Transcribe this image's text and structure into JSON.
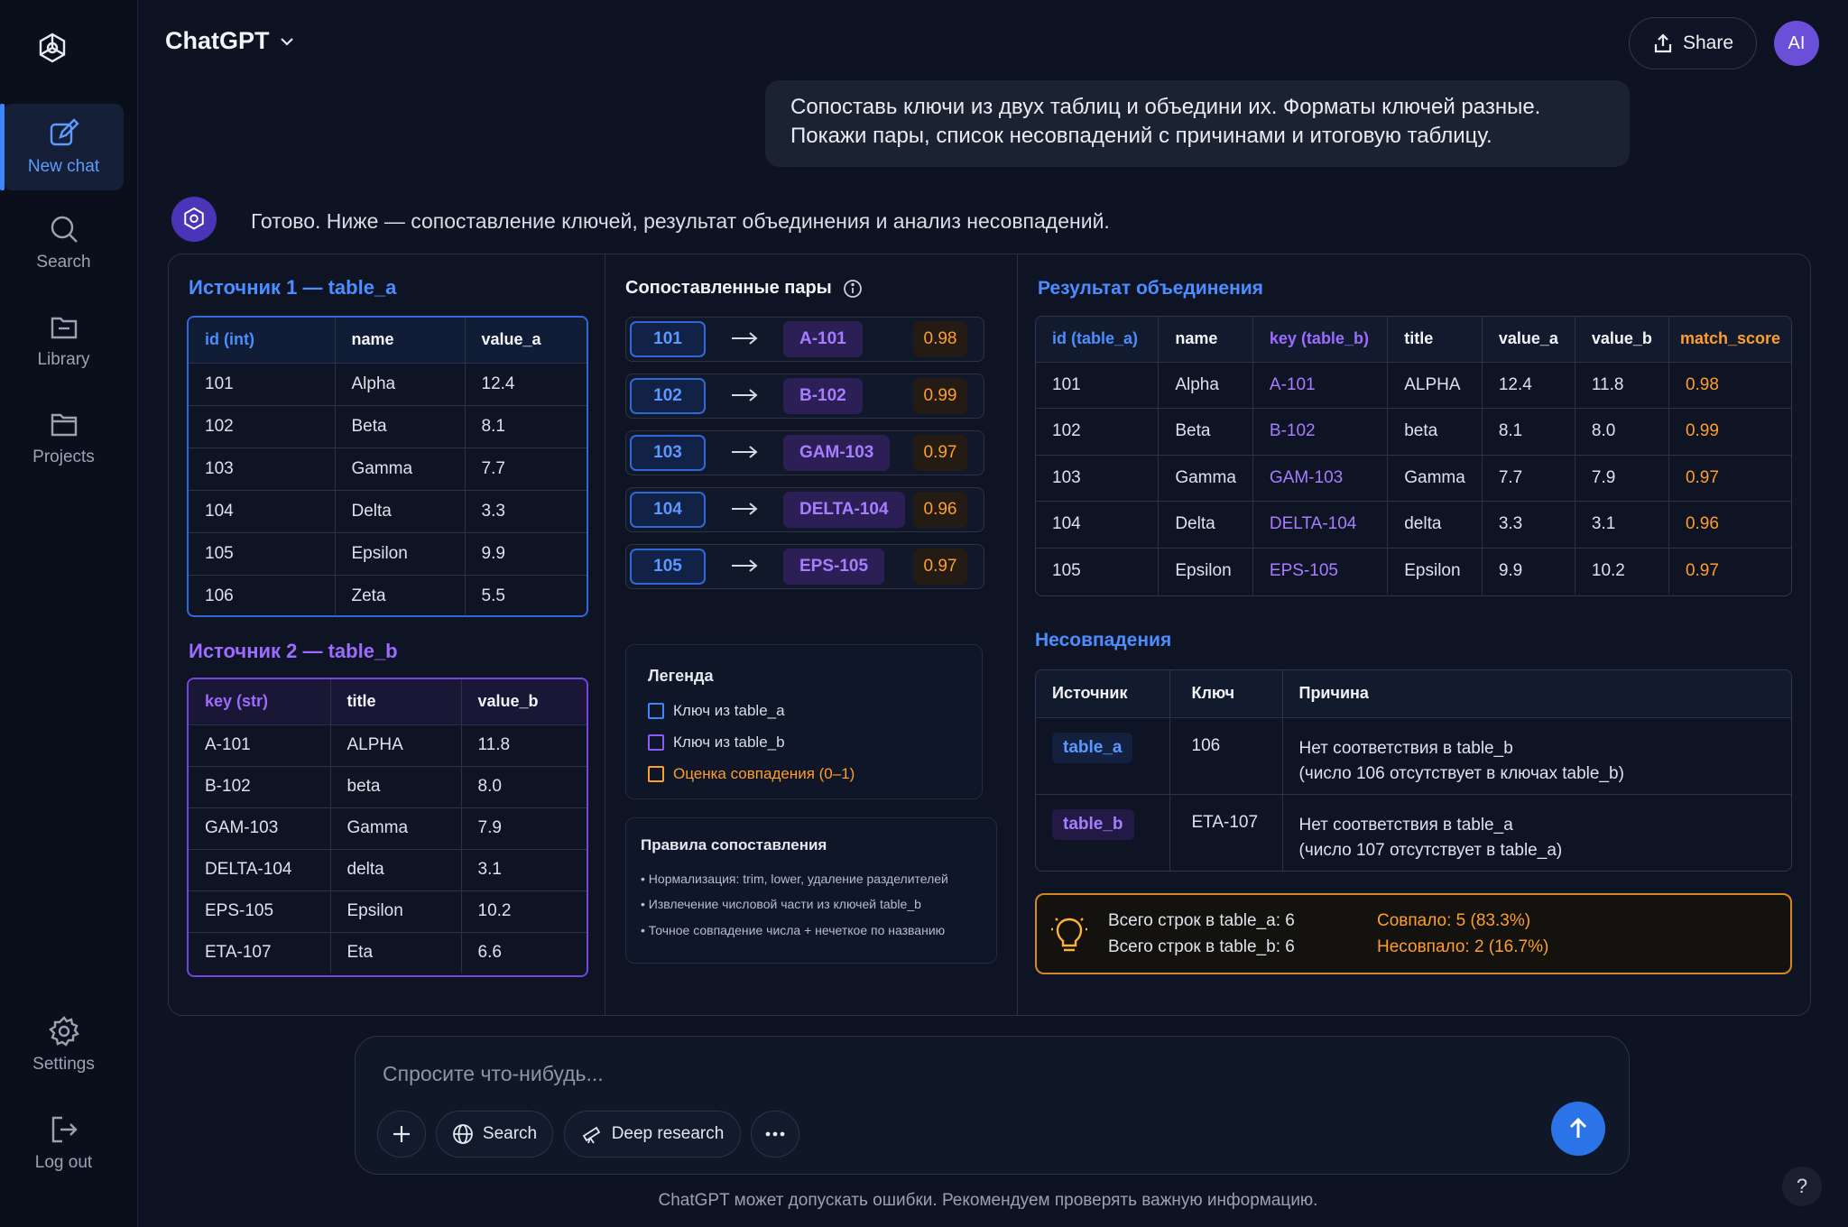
{
  "sidebar": {
    "items": [
      {
        "label": "New chat",
        "icon": "compose-icon"
      },
      {
        "label": "Search",
        "icon": "search-icon"
      },
      {
        "label": "Library",
        "icon": "library-icon"
      },
      {
        "label": "Projects",
        "icon": "folder-icon"
      },
      {
        "label": "Settings",
        "icon": "gear-icon"
      },
      {
        "label": "Log out",
        "icon": "logout-icon"
      }
    ]
  },
  "header": {
    "title": "ChatGPT",
    "share_label": "Share",
    "avatar_initials": "AI"
  },
  "user_message": {
    "line1": "Сопоставь ключи из двух таблиц и объедини их. Форматы ключей разные.",
    "line2": "Покажи пары, список несовпадений с причинами и итоговую таблицу."
  },
  "assistant_message": "Готово. Ниже — сопоставление ключей, результат объединения и анализ несовпадений.",
  "source_a": {
    "title": "Источник 1 — table_a",
    "headers": [
      "id (int)",
      "name",
      "value_a"
    ],
    "rows": [
      [
        "101",
        "Alpha",
        "12.4"
      ],
      [
        "102",
        "Beta",
        "8.1"
      ],
      [
        "103",
        "Gamma",
        "7.7"
      ],
      [
        "104",
        "Delta",
        "3.3"
      ],
      [
        "105",
        "Epsilon",
        "9.9"
      ],
      [
        "106",
        "Zeta",
        "5.5"
      ]
    ]
  },
  "source_b": {
    "title": "Источник 2 — table_b",
    "headers": [
      "key (str)",
      "title",
      "value_b"
    ],
    "rows": [
      [
        "A-101",
        "ALPHA",
        "11.8"
      ],
      [
        "B-102",
        "beta",
        "8.0"
      ],
      [
        "GAM-103",
        "Gamma",
        "7.9"
      ],
      [
        "DELTA-104",
        "delta",
        "3.1"
      ],
      [
        "EPS-105",
        "Epsilon",
        "10.2"
      ],
      [
        "ETA-107",
        "Eta",
        "6.6"
      ]
    ]
  },
  "pairs": {
    "title": "Сопоставленные пары",
    "rows": [
      {
        "a": "101",
        "b": "A-101",
        "score": "0.98"
      },
      {
        "a": "102",
        "b": "B-102",
        "score": "0.99"
      },
      {
        "a": "103",
        "b": "GAM-103",
        "score": "0.97"
      },
      {
        "a": "104",
        "b": "DELTA-104",
        "score": "0.96"
      },
      {
        "a": "105",
        "b": "EPS-105",
        "score": "0.97"
      }
    ]
  },
  "legend": {
    "title": "Легенда",
    "items": [
      "Ключ из table_a",
      "Ключ из table_b",
      "Оценка совпадения (0–1)"
    ],
    "colors": [
      "#3e86ff",
      "#8b5cf6",
      "#ff9e2b"
    ]
  },
  "rules": {
    "title": "Правила сопоставления",
    "items": [
      "• Нормализация: trim, lower, удаление разделителей",
      "• Извлечение числовой части из ключей table_b",
      "• Точное совпадение числа + нечеткое по названию"
    ]
  },
  "result": {
    "title": "Результат объединения",
    "headers": [
      "id (table_a)",
      "name",
      "key (table_b)",
      "title",
      "value_a",
      "value_b",
      "match_score"
    ],
    "rows": [
      [
        "101",
        "Alpha",
        "A-101",
        "ALPHA",
        "12.4",
        "11.8",
        "0.98"
      ],
      [
        "102",
        "Beta",
        "B-102",
        "beta",
        "8.1",
        "8.0",
        "0.99"
      ],
      [
        "103",
        "Gamma",
        "GAM-103",
        "Gamma",
        "7.7",
        "7.9",
        "0.97"
      ],
      [
        "104",
        "Delta",
        "DELTA-104",
        "delta",
        "3.3",
        "3.1",
        "0.96"
      ],
      [
        "105",
        "Epsilon",
        "EPS-105",
        "Epsilon",
        "9.9",
        "10.2",
        "0.97"
      ]
    ]
  },
  "mismatches": {
    "title": "Несовпадения",
    "headers": [
      "Источник",
      "Ключ",
      "Причина"
    ],
    "rows": [
      {
        "source": "table_a",
        "key": "106",
        "reason1": "Нет соответствия в table_b",
        "reason2": "(число 106 отсутствует в ключах table_b)"
      },
      {
        "source": "table_b",
        "key": "ETA-107",
        "reason1": "Нет соответствия в table_a",
        "reason2": "(число 107 отсутствует в table_a)"
      }
    ]
  },
  "summary": {
    "rows_a": "Всего строк в table_a: 6",
    "rows_b": "Всего строк в table_b: 6",
    "matched": "Совпало: 5 (83.3%)",
    "unmatched": "Несовпало: 2 (16.7%)"
  },
  "composer": {
    "placeholder": "Спросите что-нибудь...",
    "search_label": "Search",
    "deep_research_label": "Deep research"
  },
  "footer_note": "ChatGPT может допускать ошибки. Рекомендуем проверять важную информацию.",
  "help_label": "?"
}
